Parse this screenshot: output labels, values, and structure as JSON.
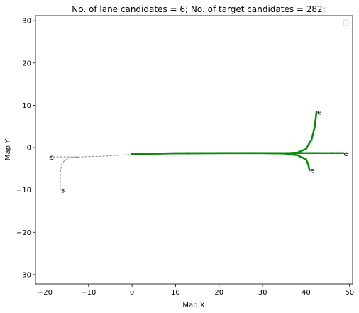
{
  "chart_data": {
    "type": "scatter",
    "title": "No. of lane candidates = 6; No. of target candidates = 282;",
    "xlabel": "Map X",
    "ylabel": "Map Y",
    "xlim": [
      -22.2,
      50.7
    ],
    "ylim": [
      -32.2,
      31.2
    ],
    "xticks": [
      -20,
      -10,
      0,
      10,
      20,
      30,
      40,
      50
    ],
    "yticks": [
      -30,
      -20,
      -10,
      0,
      10,
      20,
      30
    ],
    "grid": false,
    "legend": "top-right, empty",
    "colors": {
      "history": "#808080",
      "candidates": "#0a7d0a",
      "target_points": "#0a8a0a"
    },
    "history_paths": [
      {
        "style": "dashed",
        "points": [
          [
            -19,
            -2.2
          ],
          [
            -12,
            -2.2
          ],
          [
            -6,
            -2.0
          ],
          [
            0,
            -1.6
          ]
        ]
      },
      {
        "style": "dashed",
        "points": [
          [
            -16.5,
            -10
          ],
          [
            -16.5,
            -6
          ],
          [
            -16.2,
            -4
          ],
          [
            -15.5,
            -3
          ],
          [
            -14.2,
            -2.4
          ],
          [
            -12,
            -2.2
          ]
        ]
      }
    ],
    "lane_candidates": [
      {
        "points": [
          [
            0,
            -1.5
          ],
          [
            10,
            -1.35
          ],
          [
            20,
            -1.3
          ],
          [
            30,
            -1.3
          ],
          [
            40,
            -1.3
          ],
          [
            48.5,
            -1.3
          ]
        ]
      },
      {
        "points": [
          [
            0,
            -1.5
          ],
          [
            10,
            -1.35
          ],
          [
            20,
            -1.3
          ],
          [
            30,
            -1.3
          ],
          [
            35,
            -1.35
          ],
          [
            38,
            -1.2
          ],
          [
            40,
            -0.3
          ],
          [
            41.3,
            2
          ],
          [
            42,
            5
          ],
          [
            42.4,
            8.5
          ]
        ]
      },
      {
        "points": [
          [
            0,
            -1.5
          ],
          [
            10,
            -1.35
          ],
          [
            20,
            -1.3
          ],
          [
            30,
            -1.3
          ],
          [
            35,
            -1.4
          ],
          [
            38,
            -1.8
          ],
          [
            40,
            -2.8
          ],
          [
            40.5,
            -4
          ],
          [
            40.8,
            -5.3
          ]
        ]
      }
    ],
    "annotations": [
      {
        "text": "s",
        "x": -19,
        "y": -2.2
      },
      {
        "text": "s",
        "x": -16.5,
        "y": -10
      },
      {
        "text": "e",
        "x": 48.5,
        "y": -1.3
      },
      {
        "text": "e",
        "x": 42.4,
        "y": 8.5
      },
      {
        "text": "e",
        "x": 40.8,
        "y": -5.3
      }
    ]
  }
}
